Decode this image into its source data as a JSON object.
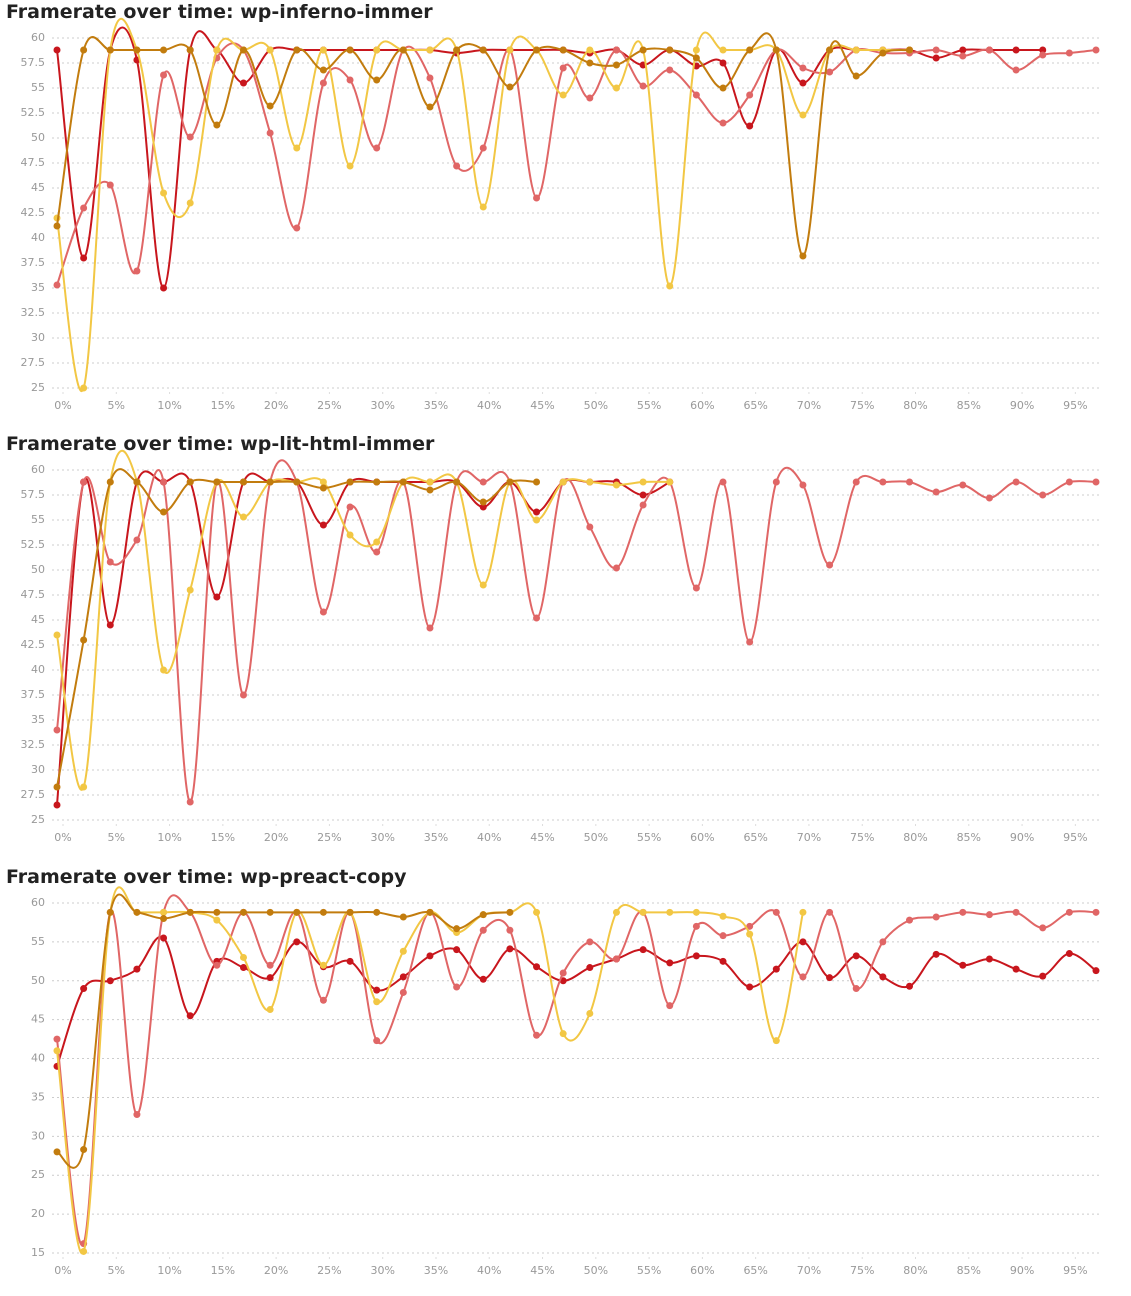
{
  "chart_data": [
    {
      "type": "line",
      "title": "Framerate over time: wp-inferno-immer",
      "x": [
        0,
        2.5,
        5,
        7.5,
        10,
        12.5,
        15,
        17.5,
        20,
        22.5,
        25,
        27.5,
        30,
        32.5,
        35,
        37.5,
        40,
        42.5,
        45,
        47.5,
        50,
        52.5,
        55,
        57.5,
        60,
        62.5,
        65,
        67.5,
        70,
        72.5,
        75,
        77.5,
        80,
        82.5,
        85,
        87.5,
        90,
        92.5,
        95,
        97.5
      ],
      "xlim": [
        0,
        97.5
      ],
      "xticks": [
        {
          "value": 0,
          "label": "0%"
        },
        {
          "value": 5,
          "label": "5%"
        },
        {
          "value": 10,
          "label": "10%"
        },
        {
          "value": 15,
          "label": "15%"
        },
        {
          "value": 20,
          "label": "20%"
        },
        {
          "value": 25,
          "label": "25%"
        },
        {
          "value": 30,
          "label": "30%"
        },
        {
          "value": 35,
          "label": "35%"
        },
        {
          "value": 40,
          "label": "40%"
        },
        {
          "value": 45,
          "label": "45%"
        },
        {
          "value": 50,
          "label": "50%"
        },
        {
          "value": 55,
          "label": "55%"
        },
        {
          "value": 60,
          "label": "60%"
        },
        {
          "value": 65,
          "label": "65%"
        },
        {
          "value": 70,
          "label": "70%"
        },
        {
          "value": 75,
          "label": "75%"
        },
        {
          "value": 80,
          "label": "80%"
        },
        {
          "value": 85,
          "label": "85%"
        },
        {
          "value": 90,
          "label": "90%"
        },
        {
          "value": 95,
          "label": "95%"
        }
      ],
      "ylim": [
        25,
        60
      ],
      "yticks": [
        25,
        27.5,
        30,
        32.5,
        35,
        37.5,
        40,
        42.5,
        45,
        47.5,
        50,
        52.5,
        55,
        57.5,
        60
      ],
      "grid": true,
      "series": [
        {
          "color": "#c8161d",
          "values": [
            58.8,
            38,
            58.8,
            57.8,
            35,
            58.8,
            58.8,
            55.5,
            58.8,
            58.8,
            58.8,
            58.8,
            58.8,
            58.8,
            58.8,
            58.5,
            58.8,
            58.8,
            58.8,
            58.8,
            58.5,
            58.8,
            57.3,
            58.8,
            57.2,
            57.5,
            51.2,
            58.8,
            55.5,
            58.8,
            58.8,
            58.8,
            58.8,
            58.0,
            58.8,
            58.8,
            58.8,
            58.8,
            null,
            null
          ]
        },
        {
          "color": "#e06666",
          "values": [
            35.3,
            43,
            45.3,
            36.7,
            56.3,
            50.1,
            58,
            58.8,
            50.5,
            41,
            55.5,
            55.8,
            49,
            58.8,
            56,
            47.2,
            49,
            58.8,
            44,
            57,
            54,
            58.8,
            55.2,
            56.8,
            54.3,
            51.5,
            54.3,
            58.8,
            57,
            56.6,
            58.8,
            58.5,
            58.5,
            58.8,
            58.2,
            58.8,
            56.8,
            58.3,
            58.5,
            58.8
          ]
        },
        {
          "color": "#f2c744",
          "values": [
            42,
            25,
            58.8,
            58.8,
            44.5,
            43.5,
            58.8,
            58.8,
            58.8,
            49,
            58.8,
            47.2,
            58.8,
            58.8,
            58.8,
            58.8,
            43.1,
            58.8,
            58.8,
            54.3,
            58.8,
            55,
            58.8,
            35.2,
            58.8,
            58.8,
            58.8,
            58.8,
            52.3,
            58.8,
            58.8,
            58.8,
            58.8,
            null,
            null,
            null,
            null,
            null,
            null,
            null
          ]
        },
        {
          "color": "#c27c0e",
          "values": [
            41.2,
            58.8,
            58.8,
            58.8,
            58.8,
            58.8,
            51.3,
            58.8,
            53.2,
            58.8,
            56.8,
            58.8,
            55.8,
            58.8,
            53.1,
            58.8,
            58.8,
            55.1,
            58.8,
            58.8,
            57.5,
            57.3,
            58.8,
            58.8,
            58,
            55,
            58.8,
            58.8,
            38.2,
            58.8,
            56.2,
            58.5,
            58.8,
            null,
            null,
            null,
            null,
            null,
            null,
            null
          ]
        }
      ]
    },
    {
      "type": "line",
      "title": "Framerate over time: wp-lit-html-immer",
      "x": [
        0,
        2.5,
        5,
        7.5,
        10,
        12.5,
        15,
        17.5,
        20,
        22.5,
        25,
        27.5,
        30,
        32.5,
        35,
        37.5,
        40,
        42.5,
        45,
        47.5,
        50,
        52.5,
        55,
        57.5,
        60,
        62.5,
        65,
        67.5,
        70,
        72.5,
        75,
        77.5,
        80,
        82.5,
        85,
        87.5,
        90,
        92.5,
        95,
        97.5
      ],
      "xlim": [
        0,
        97.5
      ],
      "xticks": [
        {
          "value": 0,
          "label": "0%"
        },
        {
          "value": 5,
          "label": "5%"
        },
        {
          "value": 10,
          "label": "10%"
        },
        {
          "value": 15,
          "label": "15%"
        },
        {
          "value": 20,
          "label": "20%"
        },
        {
          "value": 25,
          "label": "25%"
        },
        {
          "value": 30,
          "label": "30%"
        },
        {
          "value": 35,
          "label": "35%"
        },
        {
          "value": 40,
          "label": "40%"
        },
        {
          "value": 45,
          "label": "45%"
        },
        {
          "value": 50,
          "label": "50%"
        },
        {
          "value": 55,
          "label": "55%"
        },
        {
          "value": 60,
          "label": "60%"
        },
        {
          "value": 65,
          "label": "65%"
        },
        {
          "value": 70,
          "label": "70%"
        },
        {
          "value": 75,
          "label": "75%"
        },
        {
          "value": 80,
          "label": "80%"
        },
        {
          "value": 85,
          "label": "85%"
        },
        {
          "value": 90,
          "label": "90%"
        },
        {
          "value": 95,
          "label": "95%"
        }
      ],
      "ylim": [
        25,
        60
      ],
      "yticks": [
        25,
        27.5,
        30,
        32.5,
        35,
        37.5,
        40,
        42.5,
        45,
        47.5,
        50,
        52.5,
        55,
        57.5,
        60
      ],
      "grid": true,
      "series": [
        {
          "color": "#c8161d",
          "values": [
            26.5,
            58.8,
            44.5,
            58.8,
            58.8,
            58.8,
            47.3,
            58.8,
            58.8,
            58.8,
            54.5,
            58.8,
            58.8,
            58.8,
            58.8,
            58.8,
            56.3,
            58.8,
            55.8,
            58.8,
            58.8,
            58.8,
            57.5,
            58.8,
            null,
            null,
            null,
            null,
            null,
            null,
            null,
            null,
            null,
            null,
            null,
            null,
            null,
            null,
            null,
            null
          ]
        },
        {
          "color": "#e06666",
          "values": [
            34,
            58.8,
            50.8,
            53,
            58.8,
            26.8,
            58.8,
            37.5,
            58.8,
            58.8,
            45.8,
            56.3,
            51.8,
            58.8,
            44.2,
            58.8,
            58.8,
            58.8,
            45.2,
            58.8,
            54.3,
            50.2,
            56.5,
            58.8,
            48.2,
            58.8,
            42.8,
            58.8,
            58.5,
            50.5,
            58.8,
            58.8,
            58.8,
            57.8,
            58.5,
            57.2,
            58.8,
            57.5,
            58.8,
            58.8
          ]
        },
        {
          "color": "#f2c744",
          "values": [
            43.5,
            28.3,
            58.8,
            58.8,
            40,
            48,
            58.8,
            55.3,
            58.8,
            58.8,
            58.8,
            53.5,
            52.8,
            58.8,
            58.8,
            58.8,
            48.5,
            58.8,
            55,
            58.8,
            58.8,
            58.5,
            58.8,
            58.8,
            null,
            null,
            null,
            null,
            null,
            null,
            null,
            null,
            null,
            null,
            null,
            null,
            null,
            null,
            null,
            null
          ]
        },
        {
          "color": "#c27c0e",
          "values": [
            28.3,
            43,
            58.8,
            58.8,
            55.8,
            58.8,
            58.8,
            58.8,
            58.8,
            58.8,
            58.2,
            58.8,
            58.8,
            58.8,
            58,
            58.8,
            56.8,
            58.8,
            58.8,
            null,
            null,
            null,
            null,
            null,
            null,
            null,
            null,
            null,
            null,
            null,
            null,
            null,
            null,
            null,
            null,
            null,
            null,
            null,
            null,
            null
          ]
        }
      ]
    },
    {
      "type": "line",
      "title": "Framerate over time: wp-preact-copy",
      "x": [
        0,
        2.5,
        5,
        7.5,
        10,
        12.5,
        15,
        17.5,
        20,
        22.5,
        25,
        27.5,
        30,
        32.5,
        35,
        37.5,
        40,
        42.5,
        45,
        47.5,
        50,
        52.5,
        55,
        57.5,
        60,
        62.5,
        65,
        67.5,
        70,
        72.5,
        75,
        77.5,
        80,
        82.5,
        85,
        87.5,
        90,
        92.5,
        95,
        97.5
      ],
      "xlim": [
        0,
        97.5
      ],
      "xticks": [
        {
          "value": 0,
          "label": "0%"
        },
        {
          "value": 5,
          "label": "5%"
        },
        {
          "value": 10,
          "label": "10%"
        },
        {
          "value": 15,
          "label": "15%"
        },
        {
          "value": 20,
          "label": "20%"
        },
        {
          "value": 25,
          "label": "25%"
        },
        {
          "value": 30,
          "label": "30%"
        },
        {
          "value": 35,
          "label": "35%"
        },
        {
          "value": 40,
          "label": "40%"
        },
        {
          "value": 45,
          "label": "45%"
        },
        {
          "value": 50,
          "label": "50%"
        },
        {
          "value": 55,
          "label": "55%"
        },
        {
          "value": 60,
          "label": "60%"
        },
        {
          "value": 65,
          "label": "65%"
        },
        {
          "value": 70,
          "label": "70%"
        },
        {
          "value": 75,
          "label": "75%"
        },
        {
          "value": 80,
          "label": "80%"
        },
        {
          "value": 85,
          "label": "85%"
        },
        {
          "value": 90,
          "label": "90%"
        },
        {
          "value": 95,
          "label": "95%"
        }
      ],
      "ylim": [
        15,
        60
      ],
      "yticks": [
        15,
        20,
        25,
        30,
        35,
        40,
        45,
        50,
        55,
        60
      ],
      "grid": true,
      "series": [
        {
          "color": "#c8161d",
          "values": [
            39,
            49,
            50,
            51.5,
            55.5,
            45.5,
            52.5,
            51.7,
            50.4,
            55,
            51.8,
            52.5,
            48.8,
            50.5,
            53.2,
            54,
            50.2,
            54.1,
            51.8,
            50,
            51.7,
            52.8,
            54,
            52.3,
            53.2,
            52.5,
            49.2,
            51.5,
            55,
            50.4,
            53.2,
            50.5,
            49.3,
            53.4,
            52,
            52.8,
            51.5,
            50.6,
            53.5,
            51.3
          ]
        },
        {
          "color": "#e06666",
          "values": [
            42.5,
            16.2,
            58.8,
            32.8,
            58.8,
            58.8,
            52,
            58.8,
            52,
            58.8,
            47.5,
            58.8,
            42.3,
            48.5,
            58.8,
            49.2,
            56.5,
            56.5,
            43,
            51,
            55,
            52.8,
            58.8,
            46.8,
            57,
            55.8,
            57,
            58.8,
            50.5,
            58.8,
            49,
            55,
            57.8,
            58.2,
            58.8,
            58.5,
            58.8,
            56.8,
            58.8,
            58.8
          ]
        },
        {
          "color": "#f2c744",
          "values": [
            41,
            15.2,
            58.8,
            58.8,
            58.8,
            58.8,
            57.8,
            53,
            46.3,
            58.8,
            52,
            58.8,
            47.3,
            53.8,
            58.8,
            56.2,
            58.5,
            58.8,
            58.8,
            43.2,
            45.8,
            58.8,
            58.8,
            58.8,
            58.8,
            58.3,
            56,
            42.3,
            58.8,
            null,
            null,
            null,
            null,
            null,
            null,
            null,
            null,
            null,
            null,
            null
          ]
        },
        {
          "color": "#c27c0e",
          "values": [
            28,
            28.3,
            58.8,
            58.8,
            58,
            58.8,
            58.8,
            58.8,
            58.8,
            58.8,
            58.8,
            58.8,
            58.8,
            58.2,
            58.8,
            56.7,
            58.5,
            58.8,
            null,
            null,
            null,
            null,
            null,
            null,
            null,
            null,
            null,
            null,
            null,
            null,
            null,
            null,
            null,
            null,
            null,
            null,
            null,
            null,
            null,
            null
          ]
        }
      ]
    }
  ]
}
